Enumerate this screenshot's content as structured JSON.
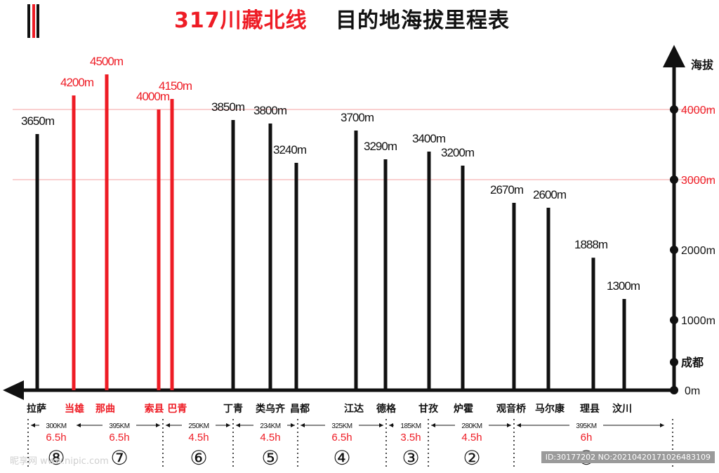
{
  "title": {
    "part_red": "317川藏北线",
    "part_black": "目的地海拔里程表"
  },
  "colors": {
    "red": "#ee1c25",
    "black": "#111111",
    "gridline": "#f5a0a0"
  },
  "chart_data": {
    "type": "bar",
    "ylabel": "海拔",
    "ylim": [
      0,
      5000
    ],
    "yticks": [
      {
        "value": 0,
        "label": "0m",
        "color": "black"
      },
      {
        "value": 400,
        "label": "成都",
        "color": "black"
      },
      {
        "value": 1000,
        "label": "1000m",
        "color": "black"
      },
      {
        "value": 2000,
        "label": "2000m",
        "color": "black"
      },
      {
        "value": 3000,
        "label": "3000m",
        "color": "red"
      },
      {
        "value": 4000,
        "label": "4000m",
        "color": "red"
      }
    ],
    "gridlines": [
      3000,
      4000
    ],
    "categories": [
      "拉萨",
      "当雄",
      "那曲",
      "索县",
      "巴青",
      "丁青",
      "类乌齐",
      "昌都",
      "江达",
      "德格",
      "甘孜",
      "炉霍",
      "观音桥",
      "马尔康",
      "理县",
      "汶川"
    ],
    "values": [
      3650,
      4200,
      4500,
      4000,
      4150,
      3850,
      3800,
      3240,
      3700,
      3290,
      3400,
      3200,
      2670,
      2600,
      1888,
      1300
    ],
    "value_labels": [
      "3650m",
      "4200m",
      "4500m",
      "4000m",
      "4150m",
      "3850m",
      "3800m",
      "3240m",
      "3700m",
      "3290m",
      "3400m",
      "3200m",
      "2670m",
      "2600m",
      "1888m",
      "1300m"
    ],
    "highlight": [
      false,
      true,
      true,
      true,
      true,
      false,
      false,
      false,
      false,
      false,
      false,
      false,
      false,
      false,
      false,
      false
    ],
    "category_labels": [
      "拉萨",
      "当雄",
      "那曲",
      "索县 巴青",
      "丁青",
      "类乌齐",
      "昌都",
      "江达",
      "德格",
      "甘孜",
      "炉霍",
      "观音桥",
      "马尔康",
      "理县",
      "汶川"
    ],
    "segments": [
      {
        "distance": "300KM",
        "duration": "6.5h",
        "stage": "⑧"
      },
      {
        "distance": "395KM",
        "duration": "6.5h",
        "stage": "⑦"
      },
      {
        "distance": "250KM",
        "duration": "4.5h",
        "stage": "⑥"
      },
      {
        "distance": "234KM",
        "duration": "4.5h",
        "stage": "⑤"
      },
      {
        "distance": "325KM",
        "duration": "6.5h",
        "stage": "④"
      },
      {
        "distance": "185KM",
        "duration": "3.5h",
        "stage": "③"
      },
      {
        "distance": "280KM",
        "duration": "4.5h",
        "stage": "②"
      },
      {
        "distance": "395KM",
        "duration": "6h",
        "stage": "①"
      }
    ]
  },
  "watermark": {
    "left": "昵享网 www.nipic.com",
    "right": "ID:30177202 NO:20210420171026483109"
  }
}
